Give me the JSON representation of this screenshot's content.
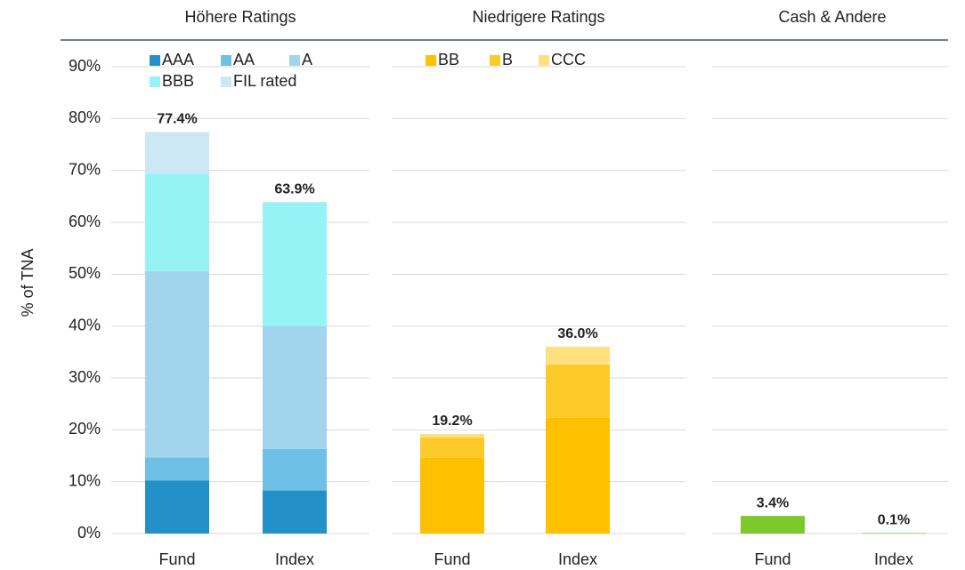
{
  "chart_data": {
    "type": "bar",
    "ylabel": "% of TNA",
    "ylim": [
      0,
      90
    ],
    "yticks": [
      {
        "value": 0,
        "label": "0%"
      },
      {
        "value": 10,
        "label": "10%"
      },
      {
        "value": 20,
        "label": "20%"
      },
      {
        "value": 30,
        "label": "30%"
      },
      {
        "value": 40,
        "label": "40%"
      },
      {
        "value": 50,
        "label": "50%"
      },
      {
        "value": 60,
        "label": "60%"
      },
      {
        "value": 70,
        "label": "70%"
      },
      {
        "value": 80,
        "label": "80%"
      },
      {
        "value": 90,
        "label": "90%"
      }
    ],
    "panels": [
      {
        "title": "Höhere Ratings",
        "categories": [
          "Fund",
          "Index"
        ],
        "series": [
          {
            "name": "AAA",
            "color": "#2391c8",
            "values": [
              10.2,
              8.3
            ]
          },
          {
            "name": "AA",
            "color": "#6ec0e6",
            "values": [
              4.5,
              8.0
            ]
          },
          {
            "name": "A",
            "color": "#a3d4ee",
            "values": [
              35.9,
              23.7
            ]
          },
          {
            "name": "BBB",
            "color": "#96f3f5",
            "values": [
              18.8,
              23.9
            ]
          },
          {
            "name": "FIL rated",
            "color": "#cde8f5",
            "values": [
              8.0,
              0
            ]
          }
        ],
        "totals": [
          77.4,
          63.9
        ],
        "total_labels": [
          "77.4%",
          "63.9%"
        ]
      },
      {
        "title": "Niedrigere Ratings",
        "categories": [
          "Fund",
          "Index"
        ],
        "series": [
          {
            "name": "BB",
            "color": "#ffc000",
            "values": [
              14.6,
              22.3
            ]
          },
          {
            "name": "B",
            "color": "#fdca2a",
            "values": [
              3.9,
              10.3
            ]
          },
          {
            "name": "CCC",
            "color": "#ffe07f",
            "values": [
              0.7,
              3.4
            ]
          }
        ],
        "totals": [
          19.2,
          36.0
        ],
        "total_labels": [
          "19.2%",
          "36.0%"
        ]
      },
      {
        "title": "Cash & Andere",
        "categories": [
          "Fund",
          "Index"
        ],
        "series": [
          {
            "color": "#7dc82a",
            "values": [
              3.4,
              0.1
            ]
          }
        ],
        "totals": [
          3.4,
          0.1
        ],
        "total_labels": [
          "3.4%",
          "0.1%"
        ]
      }
    ]
  }
}
